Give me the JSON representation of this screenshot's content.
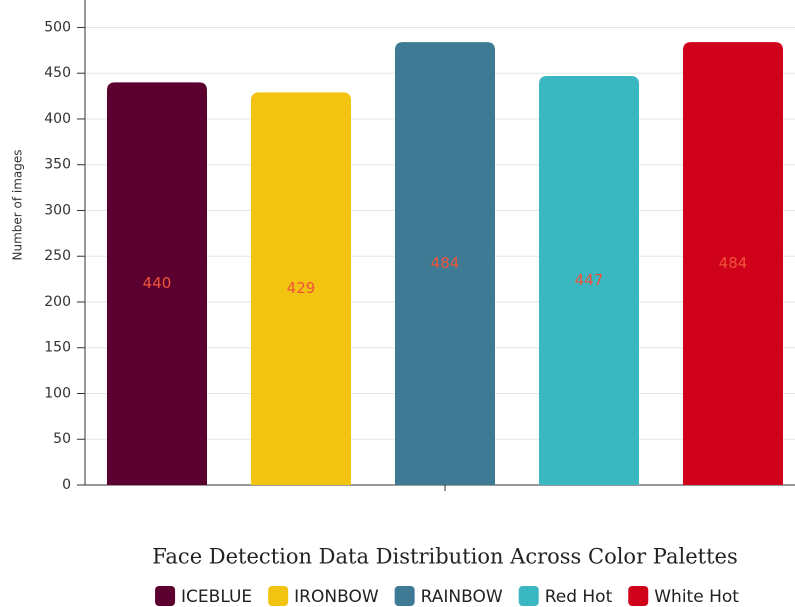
{
  "chart_data": {
    "type": "bar",
    "title": "Face Detection Data Distribution Across Color Palettes",
    "y_label": "Number of images",
    "series": [
      {
        "name": "ICEBLUE",
        "color": "#5c0030",
        "values": [
          440
        ]
      },
      {
        "name": "IRONBOW",
        "color": "#f2c311",
        "values": [
          429
        ]
      },
      {
        "name": "RAINBOW",
        "color": "#3e7a94",
        "values": [
          484
        ]
      },
      {
        "name": "Red Hot",
        "color": "#3bb7c1",
        "values": [
          447
        ]
      },
      {
        "name": "White Hot",
        "color": "#d0021b",
        "values": [
          484
        ]
      }
    ],
    "ylim": [
      0,
      530
    ],
    "yticks": [
      0,
      50,
      100,
      150,
      200,
      250,
      300,
      350,
      400,
      450,
      500
    ],
    "grid": true,
    "legend": "bottom"
  }
}
